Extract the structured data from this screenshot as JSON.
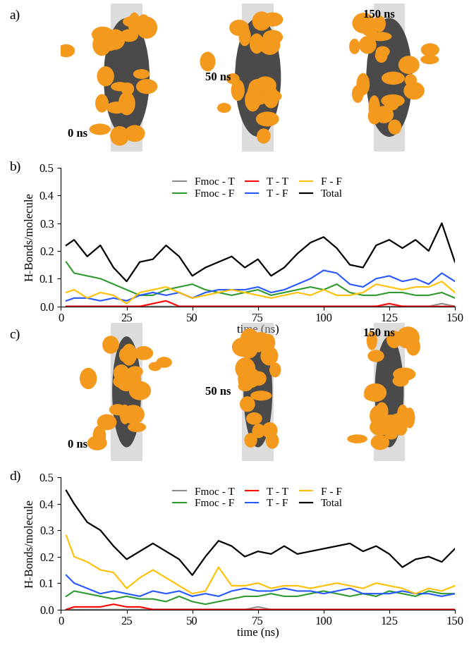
{
  "snapshots": [
    {
      "panel": "a)",
      "labels": [
        "0 ns",
        "50 ns",
        "150 ns"
      ]
    },
    {
      "panel": "c)",
      "labels": [
        "0 ns",
        "50 ns",
        "150 ns"
      ]
    }
  ],
  "chart_data": [
    {
      "type": "line",
      "title": "b)",
      "x_label": "time (ns)",
      "y_label": "H-Bonds/molecule",
      "x": [
        2,
        5,
        10,
        15,
        20,
        25,
        30,
        35,
        40,
        45,
        50,
        55,
        60,
        65,
        70,
        75,
        80,
        85,
        90,
        95,
        100,
        105,
        110,
        115,
        120,
        125,
        130,
        135,
        140,
        145,
        150
      ],
      "xlim": [
        0,
        150
      ],
      "xticks": [
        0,
        25,
        50,
        75,
        100,
        125,
        150
      ],
      "ylim": [
        0,
        0.5
      ],
      "yticks": [
        {
          "value": 0,
          "label": "0.0"
        },
        {
          "value": 0.1,
          "label": "0.1"
        },
        {
          "value": 0.2,
          "label": "0.2"
        },
        {
          "value": 0.3,
          "label": "0.3"
        },
        {
          "value": 0.4,
          "label": "0.4"
        },
        {
          "value": 0.5,
          "label": "0.5"
        }
      ],
      "legend": "upper center",
      "series": [
        {
          "name": "Fmoc - T",
          "color": "#8c8c8c",
          "values": [
            0,
            0,
            0,
            0,
            0,
            0,
            0,
            0,
            0,
            0,
            0,
            0,
            0,
            0,
            0,
            0,
            0,
            0,
            0,
            0,
            0,
            0,
            0,
            0,
            0,
            0,
            0,
            0,
            0,
            0.01,
            0
          ]
        },
        {
          "name": "Fmoc - F",
          "color": "#2e9a2e",
          "values": [
            0.16,
            0.12,
            0.11,
            0.1,
            0.08,
            0.06,
            0.04,
            0.04,
            0.06,
            0.07,
            0.08,
            0.06,
            0.05,
            0.04,
            0.05,
            0.06,
            0.04,
            0.05,
            0.06,
            0.07,
            0.06,
            0.08,
            0.05,
            0.04,
            0.04,
            0.05,
            0.05,
            0.04,
            0.04,
            0.05,
            0.03
          ]
        },
        {
          "name": "T - T",
          "color": "#ff0000",
          "values": [
            0,
            0,
            0,
            0,
            0,
            0,
            0,
            0.01,
            0.02,
            0,
            0,
            0,
            0,
            0,
            0,
            0,
            0,
            0,
            0,
            0,
            0,
            0,
            0,
            0,
            0,
            0.01,
            0,
            0,
            0,
            0,
            0
          ]
        },
        {
          "name": "T - F",
          "color": "#2457ff",
          "values": [
            0.02,
            0.03,
            0.03,
            0.02,
            0.03,
            0.02,
            0.04,
            0.05,
            0.04,
            0.05,
            0.03,
            0.05,
            0.06,
            0.06,
            0.06,
            0.07,
            0.05,
            0.06,
            0.08,
            0.1,
            0.13,
            0.12,
            0.08,
            0.07,
            0.1,
            0.11,
            0.09,
            0.1,
            0.08,
            0.12,
            0.09
          ]
        },
        {
          "name": "F - F",
          "color": "#ffc000",
          "values": [
            0.05,
            0.06,
            0.03,
            0.05,
            0.04,
            0.01,
            0.05,
            0.06,
            0.07,
            0.05,
            0.03,
            0.04,
            0.05,
            0.06,
            0.05,
            0.04,
            0.03,
            0.04,
            0.05,
            0.04,
            0.06,
            0.04,
            0.04,
            0.05,
            0.08,
            0.07,
            0.06,
            0.07,
            0.07,
            0.09,
            0.05
          ]
        },
        {
          "name": "Total",
          "color": "#000000",
          "values": [
            0.22,
            0.24,
            0.18,
            0.22,
            0.14,
            0.09,
            0.16,
            0.17,
            0.22,
            0.18,
            0.11,
            0.14,
            0.16,
            0.18,
            0.14,
            0.17,
            0.11,
            0.14,
            0.19,
            0.23,
            0.25,
            0.21,
            0.15,
            0.14,
            0.22,
            0.24,
            0.21,
            0.24,
            0.2,
            0.3,
            0.16
          ]
        }
      ]
    },
    {
      "type": "line",
      "title": "d)",
      "x_label": "time (ns)",
      "y_label": "H-Bonds/molecule",
      "x": [
        2,
        5,
        10,
        15,
        20,
        25,
        30,
        35,
        40,
        45,
        50,
        55,
        60,
        65,
        70,
        75,
        80,
        85,
        90,
        95,
        100,
        105,
        110,
        115,
        120,
        125,
        130,
        135,
        140,
        145,
        150
      ],
      "xlim": [
        0,
        150
      ],
      "xticks": [
        0,
        25,
        50,
        75,
        100,
        125,
        150
      ],
      "ylim": [
        0,
        0.5
      ],
      "yticks": [
        {
          "value": 0,
          "label": "0.0"
        },
        {
          "value": 0.1,
          "label": "0.1"
        },
        {
          "value": 0.2,
          "label": "0.2"
        },
        {
          "value": 0.3,
          "label": "0.3"
        },
        {
          "value": 0.4,
          "label": "0.4"
        },
        {
          "value": 0.5,
          "label": "0.5"
        }
      ],
      "legend": "upper center",
      "series": [
        {
          "name": "Fmoc - T",
          "color": "#8c8c8c",
          "values": [
            0,
            0,
            0,
            0,
            0,
            0,
            0,
            0,
            0,
            0,
            0,
            0,
            0,
            0,
            0,
            0.01,
            0,
            0,
            0,
            0,
            0,
            0,
            0,
            0,
            0,
            0,
            0,
            0,
            0,
            0,
            0
          ]
        },
        {
          "name": "Fmoc - F",
          "color": "#2e9a2e",
          "values": [
            0.05,
            0.07,
            0.06,
            0.05,
            0.04,
            0.05,
            0.04,
            0.04,
            0.03,
            0.05,
            0.03,
            0.02,
            0.03,
            0.04,
            0.05,
            0.05,
            0.06,
            0.05,
            0.05,
            0.06,
            0.07,
            0.06,
            0.05,
            0.06,
            0.05,
            0.07,
            0.06,
            0.05,
            0.07,
            0.06,
            0.06
          ]
        },
        {
          "name": "T - T",
          "color": "#ff0000",
          "values": [
            0,
            0.01,
            0.01,
            0.01,
            0.02,
            0.01,
            0.01,
            0,
            0,
            0,
            0,
            0,
            0,
            0,
            0,
            0,
            0,
            0,
            0,
            0,
            0,
            0,
            0,
            0,
            0,
            0,
            0,
            0,
            0,
            0,
            0
          ]
        },
        {
          "name": "T - F",
          "color": "#2457ff",
          "values": [
            0.13,
            0.1,
            0.08,
            0.06,
            0.07,
            0.06,
            0.05,
            0.07,
            0.06,
            0.07,
            0.05,
            0.06,
            0.05,
            0.07,
            0.08,
            0.07,
            0.07,
            0.08,
            0.07,
            0.07,
            0.06,
            0.07,
            0.08,
            0.06,
            0.06,
            0.06,
            0.07,
            0.06,
            0.06,
            0.05,
            0.06
          ]
        },
        {
          "name": "F - F",
          "color": "#ffc000",
          "values": [
            0.28,
            0.2,
            0.18,
            0.15,
            0.14,
            0.08,
            0.12,
            0.15,
            0.12,
            0.09,
            0.06,
            0.07,
            0.16,
            0.09,
            0.09,
            0.1,
            0.08,
            0.09,
            0.09,
            0.08,
            0.09,
            0.1,
            0.09,
            0.08,
            0.1,
            0.09,
            0.08,
            0.06,
            0.08,
            0.07,
            0.09
          ]
        },
        {
          "name": "Total",
          "color": "#000000",
          "values": [
            0.45,
            0.4,
            0.33,
            0.3,
            0.24,
            0.19,
            0.22,
            0.25,
            0.22,
            0.19,
            0.13,
            0.2,
            0.26,
            0.24,
            0.2,
            0.22,
            0.21,
            0.24,
            0.21,
            0.22,
            0.23,
            0.24,
            0.25,
            0.22,
            0.24,
            0.21,
            0.16,
            0.19,
            0.2,
            0.18,
            0.23
          ]
        }
      ]
    }
  ]
}
